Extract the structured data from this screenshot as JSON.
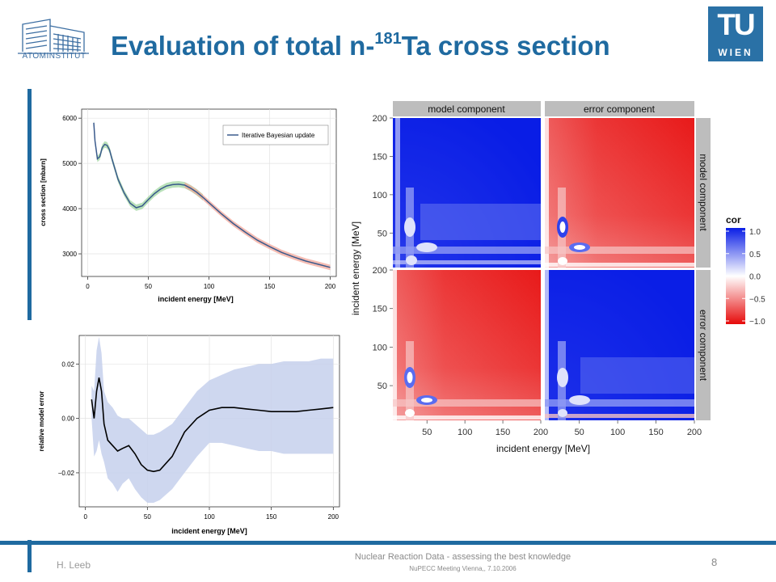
{
  "slide": {
    "title_prefix": "Evaluation of total n-",
    "title_sup": "181",
    "title_suffix": "Ta cross section",
    "left_logo_text": "ATOMINSTITUT",
    "right_logo_top": "TU",
    "right_logo_bottom": "WIEN",
    "footer_author": "H. Leeb",
    "footer_title": "Nuclear Reaction Data - assessing the best knowledge",
    "footer_subtitle": "NuPECC Meeting Vienna,, 7.10.2006",
    "page_number": "8"
  },
  "colors": {
    "title": "#1f6aa0",
    "accent_bar": "#1f6aa0",
    "curve": "#3a5a8c",
    "band_green": "#9bd49b",
    "band_red": "#f3a79a",
    "band_error": "#c5d0ec",
    "cor_pos": "#0a1ee6",
    "cor_neg": "#e60a0a"
  },
  "chart_data": [
    {
      "type": "line",
      "ylabel": "cross section [mbarn]",
      "xlabel": "incident energy [MeV]",
      "xticks": [
        0,
        50,
        100,
        150,
        200
      ],
      "yticks": [
        3000,
        4000,
        5000,
        6000
      ],
      "xlim": [
        -5,
        205
      ],
      "ylim": [
        2500,
        6200
      ],
      "legend": "Iterative Bayesian update",
      "legend_position": "top-right",
      "grid": true,
      "series": [
        {
          "name": "Iterative Bayesian update",
          "x": [
            5,
            6,
            8,
            10,
            12,
            14,
            16,
            18,
            20,
            25,
            30,
            35,
            40,
            45,
            50,
            55,
            60,
            65,
            70,
            75,
            80,
            85,
            90,
            95,
            100,
            110,
            120,
            130,
            140,
            150,
            160,
            170,
            180,
            190,
            200
          ],
          "values": [
            5900,
            5500,
            5100,
            5150,
            5350,
            5420,
            5400,
            5300,
            5100,
            4650,
            4350,
            4120,
            4020,
            4060,
            4200,
            4330,
            4430,
            4500,
            4530,
            4540,
            4520,
            4450,
            4360,
            4250,
            4130,
            3890,
            3670,
            3480,
            3300,
            3160,
            3030,
            2930,
            2840,
            2770,
            2700
          ]
        }
      ]
    },
    {
      "type": "area",
      "ylabel": "relative model error",
      "xlabel": "incident energy [MeV]",
      "xticks": [
        0,
        50,
        100,
        150,
        200
      ],
      "yticks": [
        -0.02,
        0.0,
        0.02
      ],
      "ytick_labels": [
        "−0.02",
        "0.00",
        "0.02"
      ],
      "xlim": [
        -5,
        205
      ],
      "ylim": [
        -0.0325,
        0.0305
      ],
      "grid": true,
      "series": [
        {
          "name": "",
          "x": [
            5,
            7,
            9,
            11,
            13,
            15,
            18,
            22,
            26,
            30,
            35,
            40,
            45,
            50,
            55,
            60,
            70,
            80,
            90,
            100,
            110,
            120,
            130,
            140,
            150,
            160,
            170,
            180,
            190,
            200
          ],
          "values": [
            0.007,
            0.0,
            0.01,
            0.015,
            0.01,
            -0.002,
            -0.008,
            -0.01,
            -0.012,
            -0.011,
            -0.01,
            -0.013,
            -0.017,
            -0.019,
            -0.0195,
            -0.019,
            -0.014,
            -0.005,
            0.0,
            0.003,
            0.004,
            0.004,
            0.0035,
            0.003,
            0.0025,
            0.0025,
            0.0025,
            0.003,
            0.0035,
            0.004
          ],
          "upper": [
            0.012,
            0.01,
            0.025,
            0.03,
            0.024,
            0.01,
            0.006,
            0.004,
            0.001,
            0.0,
            0.0,
            -0.002,
            -0.004,
            -0.006,
            -0.006,
            -0.005,
            -0.002,
            0.004,
            0.01,
            0.014,
            0.016,
            0.018,
            0.019,
            0.02,
            0.02,
            0.021,
            0.021,
            0.021,
            0.022,
            0.022
          ],
          "lower": [
            0.0,
            -0.014,
            -0.012,
            -0.008,
            -0.013,
            -0.016,
            -0.022,
            -0.024,
            -0.027,
            -0.024,
            -0.022,
            -0.026,
            -0.029,
            -0.031,
            -0.031,
            -0.03,
            -0.026,
            -0.02,
            -0.014,
            -0.009,
            -0.009,
            -0.01,
            -0.011,
            -0.012,
            -0.012,
            -0.013,
            -0.013,
            -0.013,
            -0.013,
            -0.013
          ]
        }
      ]
    },
    {
      "type": "heatmap",
      "xlabel": "incident energy [MeV]",
      "ylabel": "incident energy [MeV]",
      "xticks": [
        50,
        100,
        150,
        200
      ],
      "yticks": [
        50,
        100,
        150,
        200
      ],
      "xlim": [
        5,
        200
      ],
      "ylim": [
        5,
        200
      ],
      "column_strips": [
        "model component",
        "error component"
      ],
      "row_strips": [
        "model component",
        "error component"
      ],
      "legend_title": "cor",
      "legend_ticks": [
        1.0,
        0.5,
        0.0,
        -0.5,
        -1.0
      ],
      "legend_tick_labels": [
        "1.0",
        "0.5",
        "0.0",
        "−0.5",
        "−1.0"
      ],
      "color_scale": {
        "low": "#e60a0a",
        "mid": "#ffffff",
        "high": "#0a1ee6"
      },
      "panels": [
        {
          "row": "model component",
          "col": "model component",
          "pattern": "positive correlation, weaker near low-energy resonances"
        },
        {
          "row": "model component",
          "col": "error component",
          "pattern": "negative correlation, white streaks near low energies"
        },
        {
          "row": "error component",
          "col": "model component",
          "pattern": "negative correlation, white streaks near low energies"
        },
        {
          "row": "error component",
          "col": "error component",
          "pattern": "positive correlation, stronger along diagonal"
        }
      ]
    }
  ]
}
